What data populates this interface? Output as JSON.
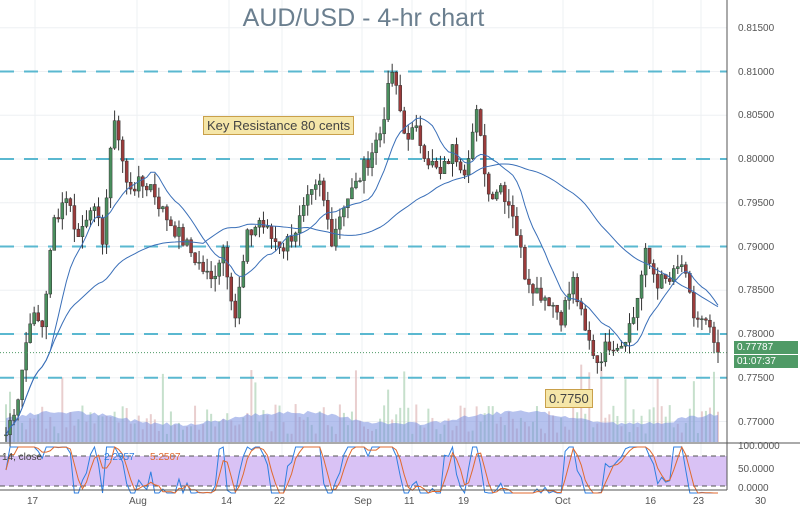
{
  "title": "AUD/USD - 4-hr chart",
  "annotations": {
    "resistance": "Key Resistance 80 cents",
    "support": "0.7750"
  },
  "last_price": "0.77787",
  "countdown": "01:07:37",
  "stochastic": {
    "label": "14, close",
    "k_value": "2.2957",
    "d_value": "5.2507",
    "k_color": "#2f7fe0",
    "d_color": "#e06a2f"
  },
  "colors": {
    "up": "#4a8f5e",
    "down": "#9b3b3b",
    "level_line": "#5ab8d0",
    "ma": "#3a6fb8",
    "volume": "#7a8fe0",
    "stoch_band": "#d9c2f5"
  },
  "chart_data": {
    "type": "candlestick",
    "title": "AUD/USD - 4-hr chart",
    "ylim": [
      0.7675,
      0.818
    ],
    "y_ticks": [
      "0.81500",
      "0.81000",
      "0.80500",
      "0.80000",
      "0.79500",
      "0.79000",
      "0.78500",
      "0.78000",
      "0.77500",
      "0.77000"
    ],
    "x_ticks": [
      "17",
      "Aug",
      "14",
      "22",
      "Sep",
      "11",
      "19",
      "Oct",
      "16",
      "23",
      "30"
    ],
    "horizontal_levels": [
      0.81,
      0.8,
      0.79,
      0.78,
      0.775
    ],
    "approx_closes": [
      0.7685,
      0.773,
      0.782,
      0.781,
      0.793,
      0.796,
      0.791,
      0.795,
      0.791,
      0.805,
      0.797,
      0.797,
      0.797,
      0.794,
      0.792,
      0.79,
      0.788,
      0.786,
      0.79,
      0.782,
      0.791,
      0.793,
      0.791,
      0.79,
      0.792,
      0.795,
      0.797,
      0.791,
      0.795,
      0.797,
      0.8,
      0.803,
      0.81,
      0.803,
      0.803,
      0.8,
      0.798,
      0.801,
      0.799,
      0.805,
      0.796,
      0.797,
      0.794,
      0.787,
      0.785,
      0.784,
      0.782,
      0.786,
      0.78,
      0.777,
      0.779,
      0.779,
      0.782,
      0.789,
      0.786,
      0.786,
      0.788,
      0.782,
      0.781,
      0.7779
    ],
    "stoch_ticks": [
      "100.0000",
      "50.0000",
      "0.0000"
    ],
    "grid": true
  }
}
